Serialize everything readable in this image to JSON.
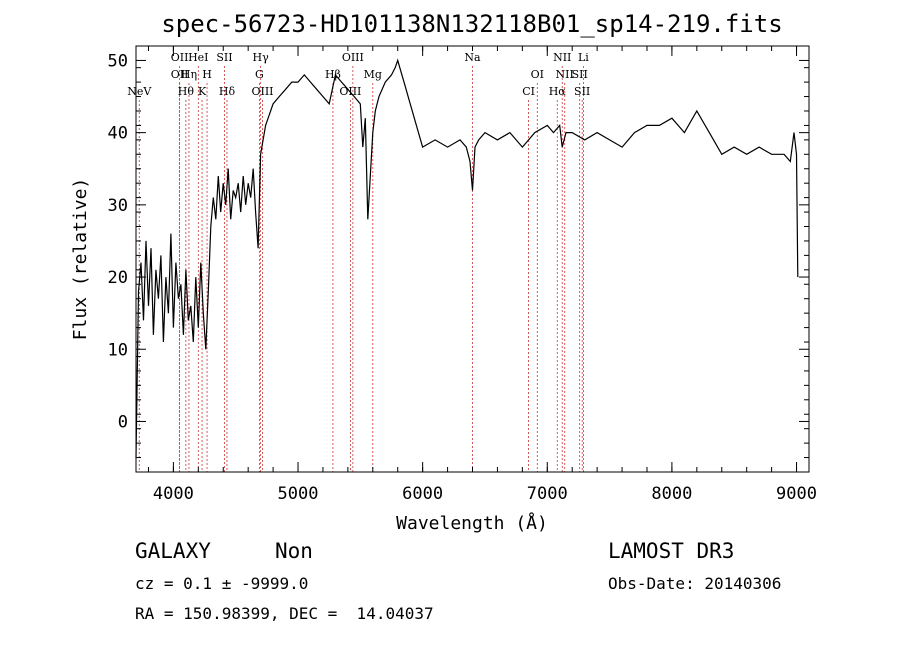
{
  "chart_data": {
    "type": "line",
    "title": "spec-56723-HD101138N132118B01_sp14-219.fits",
    "xlabel": "Wavelength (Å)",
    "ylabel": "Flux (relative)",
    "xlim": [
      3700,
      9100
    ],
    "ylim": [
      -7,
      52
    ],
    "xticks": [
      4000,
      5000,
      6000,
      7000,
      8000,
      9000
    ],
    "yticks": [
      0,
      10,
      20,
      30,
      40,
      50
    ],
    "grid": false,
    "series": [
      {
        "x": [
          3700,
          3720,
          3740,
          3760,
          3780,
          3800,
          3820,
          3840,
          3860,
          3880,
          3900,
          3920,
          3940,
          3960,
          3980,
          4000,
          4020,
          4040,
          4060,
          4080,
          4100,
          4120,
          4140,
          4160,
          4180,
          4200,
          4220,
          4240,
          4260,
          4280,
          4300,
          4320,
          4340,
          4360,
          4380,
          4400,
          4420,
          4440,
          4460,
          4480,
          4500,
          4520,
          4540,
          4560,
          4580,
          4600,
          4620,
          4640,
          4660,
          4680,
          4700,
          4720,
          4740,
          4760,
          4780,
          4800,
          4850,
          4900,
          4950,
          5000,
          5050,
          5100,
          5150,
          5200,
          5250,
          5300,
          5350,
          5400,
          5450,
          5500,
          5520,
          5540,
          5560,
          5580,
          5600,
          5620,
          5650,
          5700,
          5750,
          5780,
          5800,
          5850,
          5900,
          5950,
          6000,
          6100,
          6200,
          6300,
          6350,
          6380,
          6400,
          6420,
          6450,
          6500,
          6600,
          6700,
          6800,
          6850,
          6900,
          7000,
          7050,
          7100,
          7120,
          7150,
          7200,
          7300,
          7400,
          7500,
          7600,
          7700,
          7800,
          7900,
          8000,
          8100,
          8200,
          8300,
          8400,
          8500,
          8600,
          8700,
          8800,
          8900,
          8950,
          8980,
          9000,
          9010
        ],
        "values": [
          -5,
          18,
          22,
          14,
          25,
          16,
          24,
          12,
          21,
          17,
          23,
          11,
          20,
          15,
          26,
          13,
          22,
          17,
          19,
          12,
          21,
          14,
          16,
          11,
          20,
          13,
          22,
          15,
          10,
          18,
          27,
          31,
          28,
          34,
          29,
          33,
          30,
          35,
          28,
          32,
          31,
          33,
          29,
          34,
          30,
          33,
          31,
          35,
          29,
          24,
          37,
          39,
          41,
          42,
          43,
          44,
          45,
          46,
          47,
          47,
          48,
          47,
          46,
          45,
          44,
          48,
          47,
          46,
          45,
          44,
          38,
          42,
          28,
          34,
          40,
          43,
          45,
          47,
          48,
          49,
          50,
          47,
          44,
          41,
          38,
          39,
          38,
          39,
          38,
          36,
          32,
          38,
          39,
          40,
          39,
          40,
          38,
          39,
          40,
          41,
          40,
          41,
          38,
          40,
          40,
          39,
          40,
          39,
          38,
          40,
          41,
          41,
          42,
          40,
          43,
          40,
          37,
          38,
          37,
          38,
          37,
          37,
          36,
          40,
          37,
          20
        ]
      }
    ],
    "line_markers": [
      {
        "name": "NeV",
        "wavelength": 3726,
        "row": 3
      },
      {
        "name": "OII",
        "wavelength": 4050,
        "row": 1
      },
      {
        "name": "OII",
        "wavelength": 4050,
        "row": 2
      },
      {
        "name": "HeI",
        "wavelength": 4200,
        "row": 1
      },
      {
        "name": "Hη",
        "wavelength": 4125,
        "row": 2
      },
      {
        "name": "Hθ",
        "wavelength": 4100,
        "row": 3
      },
      {
        "name": "H",
        "wavelength": 4270,
        "row": 2
      },
      {
        "name": "K",
        "wavelength": 4230,
        "row": 3
      },
      {
        "name": "SII",
        "wavelength": 4410,
        "row": 1
      },
      {
        "name": "Hδ",
        "wavelength": 4430,
        "row": 3
      },
      {
        "name": "Hγ",
        "wavelength": 4700,
        "row": 1
      },
      {
        "name": "G",
        "wavelength": 4690,
        "row": 2
      },
      {
        "name": "OIII",
        "wavelength": 4715,
        "row": 3
      },
      {
        "name": "Hβ",
        "wavelength": 5280,
        "row": 2
      },
      {
        "name": "OIII",
        "wavelength": 5440,
        "row": 1
      },
      {
        "name": "OIII",
        "wavelength": 5420,
        "row": 3
      },
      {
        "name": "Mg",
        "wavelength": 5600,
        "row": 2
      },
      {
        "name": "Na",
        "wavelength": 6400,
        "row": 1
      },
      {
        "name": "OI",
        "wavelength": 6920,
        "row": 2
      },
      {
        "name": "CI",
        "wavelength": 6850,
        "row": 3
      },
      {
        "name": "NII",
        "wavelength": 7120,
        "row": 1
      },
      {
        "name": "NII",
        "wavelength": 7140,
        "row": 2
      },
      {
        "name": "Hα",
        "wavelength": 7080,
        "row": 3
      },
      {
        "name": "Li",
        "wavelength": 7290,
        "row": 1
      },
      {
        "name": "SII",
        "wavelength": 7260,
        "row": 2
      },
      {
        "name": "SII",
        "wavelength": 7280,
        "row": 3
      }
    ]
  },
  "info": {
    "class": "GALAXY",
    "subclass": "Non",
    "survey": "LAMOST DR3",
    "cz": "cz = 0.1 ± -9999.0",
    "obs_date": "Obs-Date: 20140306",
    "radec": "RA = 150.98399, DEC =  14.04037"
  },
  "colors": {
    "spectrum": "#000000",
    "marker_line": "#cc3333",
    "axis": "#000000"
  }
}
